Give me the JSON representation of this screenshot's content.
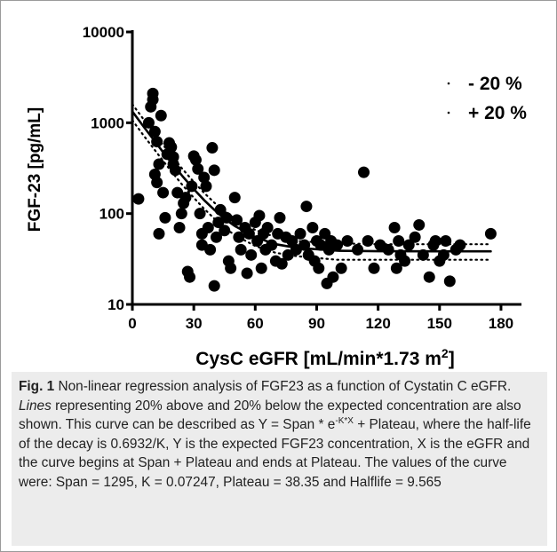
{
  "chart_data": {
    "type": "scatter",
    "y_label": "FGF-23 [pg/mL]",
    "x_label_parts": [
      {
        "text": "CysC eGFR [mL/min*1.73 m",
        "style": "normal"
      },
      {
        "text": "2",
        "style": "sup"
      },
      {
        "text": "]",
        "style": "normal"
      }
    ],
    "xlim": [
      0,
      190
    ],
    "ylim": [
      10,
      10000
    ],
    "log_y": true,
    "xticks": [
      0,
      30,
      60,
      90,
      120,
      150,
      180
    ],
    "yticks": [
      10,
      100,
      1000,
      10000
    ],
    "legend": "upper right",
    "points": {
      "color": "#000000",
      "x": [
        3,
        8,
        9,
        10,
        10,
        11,
        12,
        13,
        14,
        12,
        11,
        13,
        15,
        16,
        17,
        18,
        19,
        20,
        20,
        21,
        22,
        23,
        24,
        25,
        26,
        27,
        28,
        29,
        30,
        31,
        32,
        33,
        34,
        34,
        35,
        36,
        37,
        38,
        39,
        40,
        40,
        41,
        42,
        43,
        45,
        46,
        47,
        48,
        50,
        51,
        52,
        53,
        55,
        56,
        57,
        58,
        60,
        61,
        62,
        63,
        64,
        65,
        66,
        68,
        70,
        71,
        72,
        73,
        75,
        76,
        78,
        80,
        82,
        84,
        85,
        86,
        88,
        89,
        90,
        91,
        92,
        94,
        95,
        96,
        97,
        98,
        100,
        102,
        105,
        110,
        113,
        115,
        118,
        121,
        125,
        128,
        129,
        130,
        131,
        133,
        135,
        138,
        140,
        142,
        145,
        147,
        148,
        150,
        152,
        153,
        155,
        158,
        160,
        175
      ],
      "y": [
        145,
        1000,
        1500,
        2100,
        1800,
        800,
        620,
        350,
        1200,
        220,
        270,
        60,
        170,
        90,
        450,
        600,
        540,
        420,
        350,
        300,
        170,
        70,
        100,
        130,
        150,
        23,
        20,
        200,
        430,
        390,
        310,
        100,
        60,
        45,
        250,
        200,
        70,
        40,
        530,
        300,
        16,
        55,
        80,
        110,
        65,
        90,
        30,
        25,
        150,
        85,
        55,
        40,
        70,
        22,
        60,
        35,
        80,
        50,
        95,
        25,
        60,
        40,
        70,
        45,
        30,
        60,
        90,
        28,
        55,
        35,
        50,
        40,
        60,
        45,
        120,
        35,
        70,
        30,
        50,
        25,
        45,
        60,
        17,
        40,
        50,
        20,
        45,
        25,
        50,
        40,
        285,
        50,
        25,
        45,
        40,
        70,
        25,
        50,
        35,
        30,
        45,
        55,
        75,
        35,
        20,
        45,
        50,
        30,
        35,
        50,
        18,
        40,
        45,
        60
      ]
    },
    "curve_x": [
      0,
      5,
      10,
      15,
      20,
      25,
      30,
      35,
      40,
      45,
      50,
      60,
      70,
      80,
      100,
      120,
      150,
      175
    ],
    "curves": [
      {
        "style": "solid",
        "color": "#000000",
        "values": [
          1333,
          939,
          666,
          475,
          342,
          250,
          186,
          141,
          110,
          88,
          73,
          55,
          46,
          42,
          39,
          38.5,
          38.4,
          38.4
        ]
      },
      {
        "name": "- 20 %",
        "style": "dotted",
        "color": "#000000",
        "values": [
          1067,
          751,
          533,
          380,
          274,
          200,
          149,
          113,
          88,
          70,
          58,
          44,
          37,
          34,
          31,
          31,
          31,
          31
        ]
      },
      {
        "name": "+ 20 %",
        "style": "dotted",
        "color": "#000000",
        "values": [
          1600,
          1127,
          799,
          570,
          410,
          300,
          223,
          169,
          132,
          106,
          88,
          66,
          55,
          50,
          47,
          46,
          46,
          46
        ]
      }
    ]
  },
  "caption": [
    {
      "text": "Fig. 1",
      "style": "bold"
    },
    {
      "text": " Non-linear regression analysis of FGF23 as a function of Cystatin C eGFR. ",
      "style": "normal"
    },
    {
      "text": "Lines",
      "style": "italic"
    },
    {
      "text": " representing 20% above and 20% below the expected concentration are also shown. This curve can be described as Y = Span * ",
      "style": "normal"
    },
    {
      "text": "e",
      "style": "normal"
    },
    {
      "text": "-K*X",
      "style": "sup"
    },
    {
      "text": " + Plateau, where the half-life of the decay is 0.6932/K, Y is the expected FGF23 concentration, X is the eGFR and the curve begins at Span + Plateau and ends at Plateau. The values of the curve were: Span = 1295, K = 0.07247, Plateau = 38.35 and Halflife = 9.565",
      "style": "normal"
    }
  ]
}
